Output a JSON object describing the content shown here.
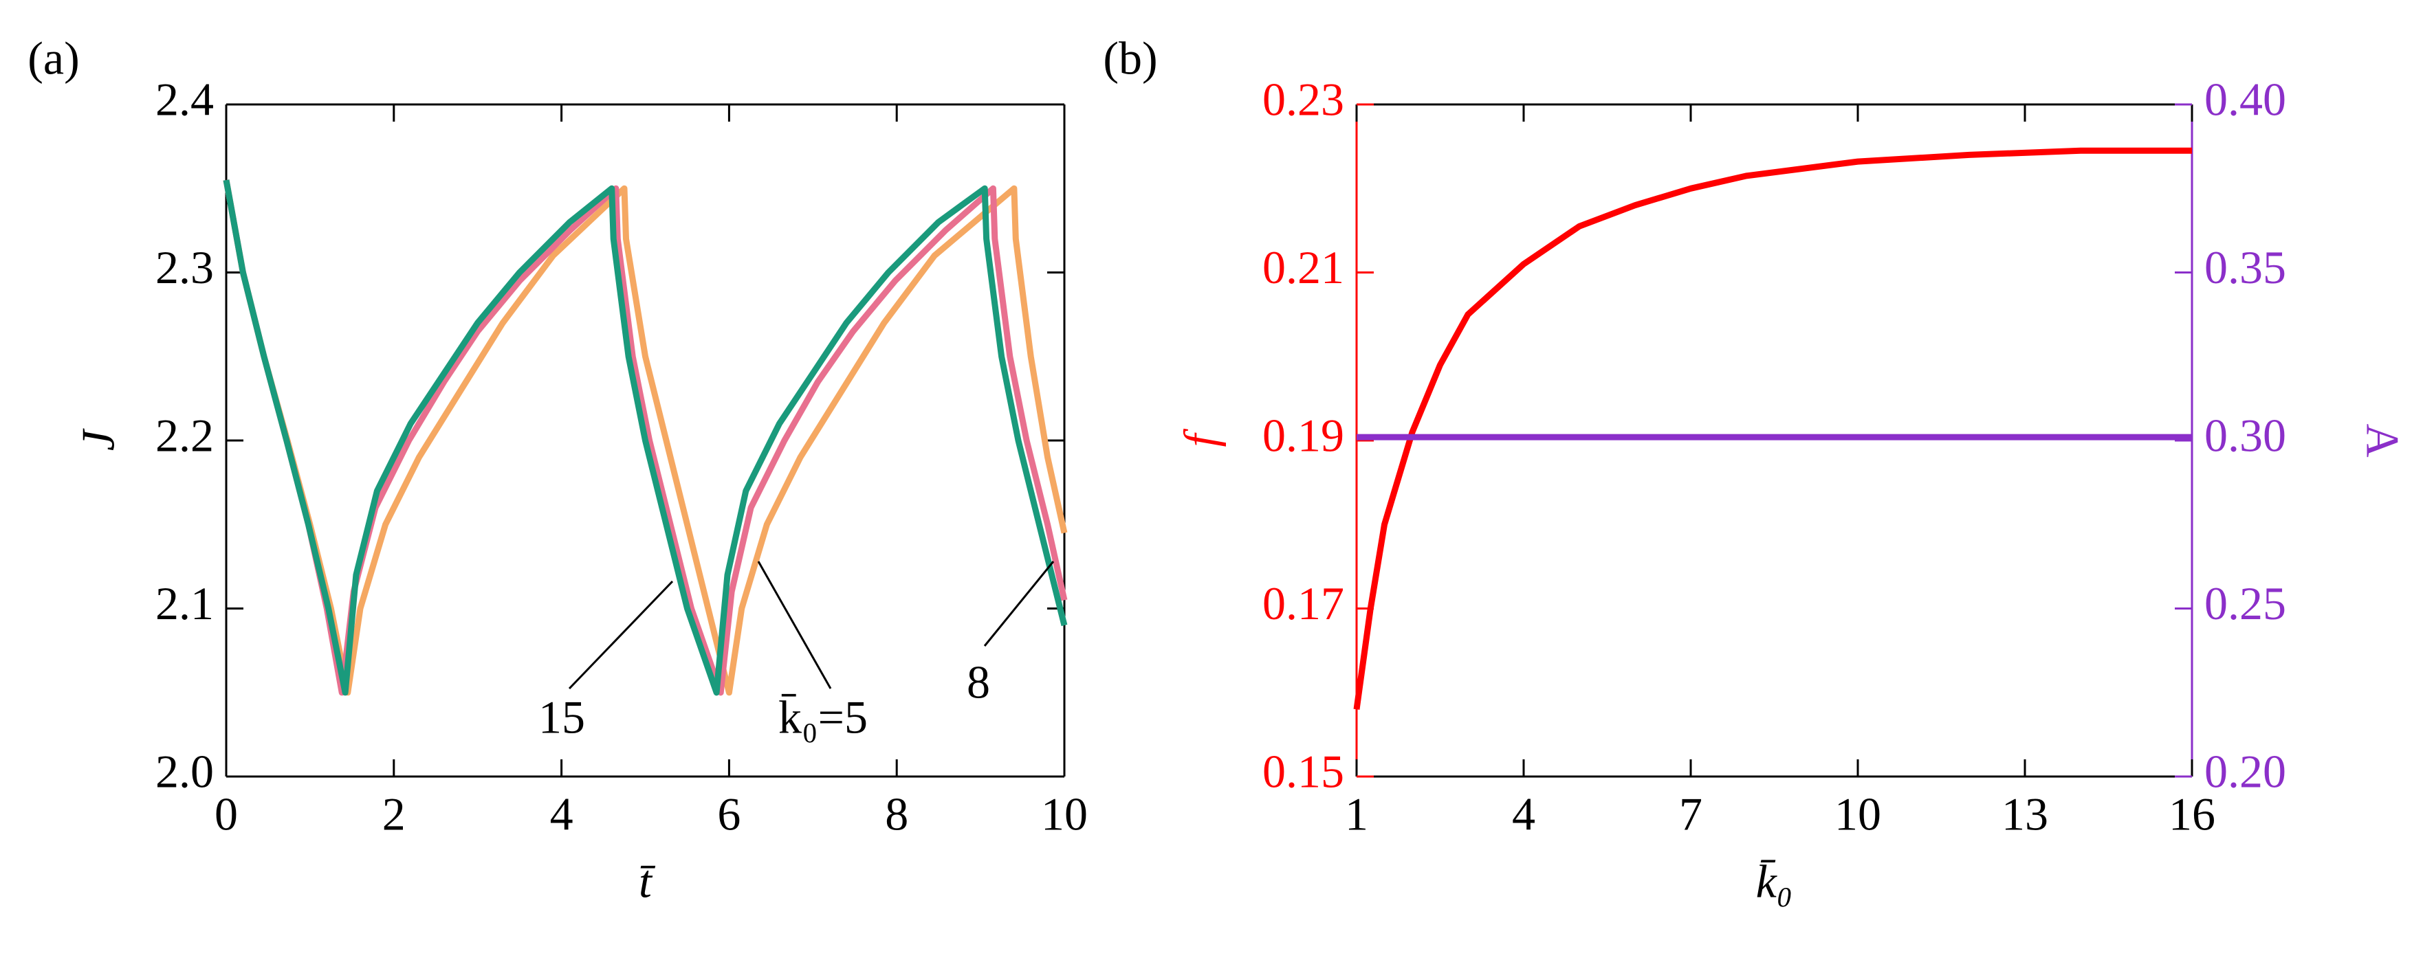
{
  "chart_data": [
    {
      "type": "line",
      "label": "(a)",
      "xlabel": "t̄",
      "ylabel": "J",
      "xlim": [
        0,
        10
      ],
      "ylim": [
        2.0,
        2.4
      ],
      "xticks": [
        0,
        2,
        4,
        6,
        8,
        10
      ],
      "yticks": [
        {
          "value": 2.0,
          "label": "2.0"
        },
        2.1,
        2.2,
        2.3,
        2.4
      ],
      "series": [
        {
          "name": "5",
          "color": "#f5a862",
          "x": [
            0,
            0.2,
            0.45,
            0.73,
            1.0,
            1.25,
            1.45,
            1.6,
            1.9,
            2.3,
            2.8,
            3.3,
            3.9,
            4.75,
            4.77,
            5.0,
            5.25,
            5.5,
            5.75,
            6.0,
            6.15,
            6.45,
            6.85,
            7.35,
            7.85,
            8.45,
            9.4,
            9.42,
            9.6,
            9.8,
            10
          ],
          "values": [
            2.355,
            2.3,
            2.25,
            2.2,
            2.15,
            2.1,
            2.05,
            2.1,
            2.15,
            2.19,
            2.23,
            2.27,
            2.31,
            2.35,
            2.32,
            2.25,
            2.2,
            2.15,
            2.1,
            2.05,
            2.1,
            2.15,
            2.19,
            2.23,
            2.27,
            2.31,
            2.35,
            2.32,
            2.25,
            2.19,
            2.145
          ]
        },
        {
          "name": "8",
          "color": "#e8708f",
          "x": [
            0,
            0.2,
            0.45,
            0.72,
            0.98,
            1.2,
            1.38,
            1.52,
            1.78,
            2.18,
            2.6,
            3.0,
            3.5,
            4.1,
            4.65,
            4.67,
            4.85,
            5.05,
            5.3,
            5.55,
            5.9,
            6.03,
            6.26,
            6.66,
            7.06,
            7.48,
            7.98,
            8.58,
            9.15,
            9.17,
            9.35,
            9.55,
            9.8,
            10
          ],
          "values": [
            2.355,
            2.3,
            2.25,
            2.2,
            2.15,
            2.1,
            2.05,
            2.11,
            2.16,
            2.2,
            2.235,
            2.265,
            2.295,
            2.325,
            2.35,
            2.32,
            2.25,
            2.2,
            2.15,
            2.1,
            2.05,
            2.11,
            2.16,
            2.2,
            2.235,
            2.265,
            2.295,
            2.325,
            2.35,
            2.32,
            2.25,
            2.2,
            2.15,
            2.105
          ]
        },
        {
          "name": "15",
          "color": "#1a9a7c",
          "x": [
            0,
            0.2,
            0.45,
            0.72,
            0.98,
            1.22,
            1.42,
            1.55,
            1.8,
            2.2,
            2.6,
            3.0,
            3.5,
            4.1,
            4.6,
            4.62,
            4.8,
            5.0,
            5.25,
            5.5,
            5.85,
            5.98,
            6.2,
            6.6,
            7.0,
            7.4,
            7.9,
            8.5,
            9.05,
            9.07,
            9.25,
            9.45,
            9.7,
            10
          ],
          "values": [
            2.355,
            2.3,
            2.25,
            2.2,
            2.15,
            2.1,
            2.05,
            2.12,
            2.17,
            2.21,
            2.24,
            2.27,
            2.3,
            2.33,
            2.35,
            2.32,
            2.25,
            2.2,
            2.15,
            2.1,
            2.05,
            2.12,
            2.17,
            2.21,
            2.24,
            2.27,
            2.3,
            2.33,
            2.35,
            2.32,
            2.25,
            2.2,
            2.15,
            2.09
          ]
        }
      ],
      "annotations": [
        {
          "text": "15"
        },
        {
          "text": "k̄₀=5"
        },
        {
          "text": "8"
        }
      ]
    },
    {
      "type": "line",
      "label": "(b)",
      "xlabel": "k̄₀",
      "ylabel": "f",
      "y2label": "A",
      "ycolor": "#ff0000",
      "y2color": "#8b2fc9",
      "xlim": [
        1,
        16
      ],
      "ylim": [
        0.15,
        0.23
      ],
      "y2lim": [
        0.2,
        0.4
      ],
      "xticks": [
        1,
        4,
        7,
        10,
        13,
        16
      ],
      "yticks": [
        0.15,
        0.17,
        0.19,
        0.21,
        0.23
      ],
      "y2ticks": [
        {
          "value": 0.2,
          "label": "0.20"
        },
        0.25,
        {
          "value": 0.3,
          "label": "0.30"
        },
        0.35,
        {
          "value": 0.4,
          "label": "0.40"
        }
      ],
      "series": [
        {
          "name": "f",
          "color": "#ff0000",
          "x": [
            1,
            1.25,
            1.5,
            2,
            2.5,
            3,
            4,
            5,
            6,
            7,
            8,
            10,
            12,
            14,
            16
          ],
          "values": [
            0.158,
            0.17,
            0.18,
            0.191,
            0.199,
            0.205,
            0.211,
            0.2155,
            0.218,
            0.22,
            0.2215,
            0.2232,
            0.224,
            0.2245,
            0.2245
          ]
        },
        {
          "name": "A",
          "color": "#8b2fc9",
          "axis": "y2",
          "x": [
            1,
            16
          ],
          "values": [
            0.301,
            0.301
          ]
        }
      ]
    }
  ]
}
